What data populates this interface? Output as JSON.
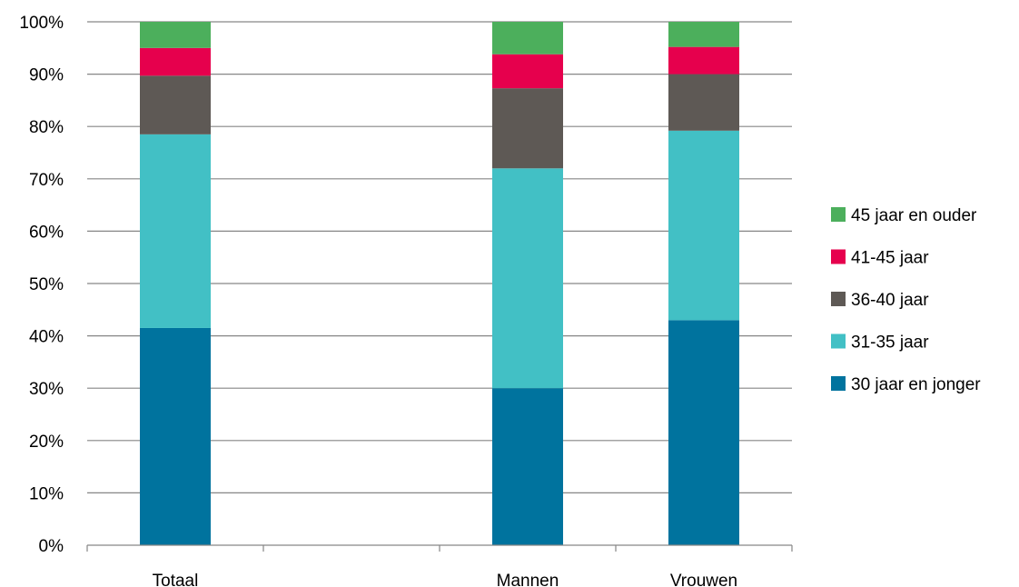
{
  "chart_data": {
    "type": "bar",
    "stacked": true,
    "percent": true,
    "categories": [
      "Totaal",
      "",
      "Mannen",
      "Vrouwen"
    ],
    "series": [
      {
        "name": "30 jaar en jonger",
        "color": "#00739e",
        "values": [
          41.5,
          null,
          30.0,
          43.0
        ]
      },
      {
        "name": "31-35 jaar",
        "color": "#42c0c5",
        "values": [
          37.0,
          null,
          42.0,
          36.2
        ]
      },
      {
        "name": "36-40 jaar",
        "color": "#5e5955",
        "values": [
          11.2,
          null,
          15.3,
          10.8
        ]
      },
      {
        "name": "41-45 jaar",
        "color": "#e6004d",
        "values": [
          5.3,
          null,
          6.5,
          5.2
        ]
      },
      {
        "name": "45 jaar en ouder",
        "color": "#4caf5c",
        "values": [
          5.0,
          null,
          6.2,
          4.8
        ]
      }
    ],
    "ylim": [
      0,
      100
    ],
    "yticks": [
      "0%",
      "10%",
      "20%",
      "30%",
      "40%",
      "50%",
      "60%",
      "70%",
      "80%",
      "90%",
      "100%"
    ],
    "grid": true,
    "legend_position": "right",
    "legend_order": [
      "45 jaar en ouder",
      "41-45 jaar",
      "36-40 jaar",
      "31-35 jaar",
      "30 jaar en jonger"
    ]
  }
}
